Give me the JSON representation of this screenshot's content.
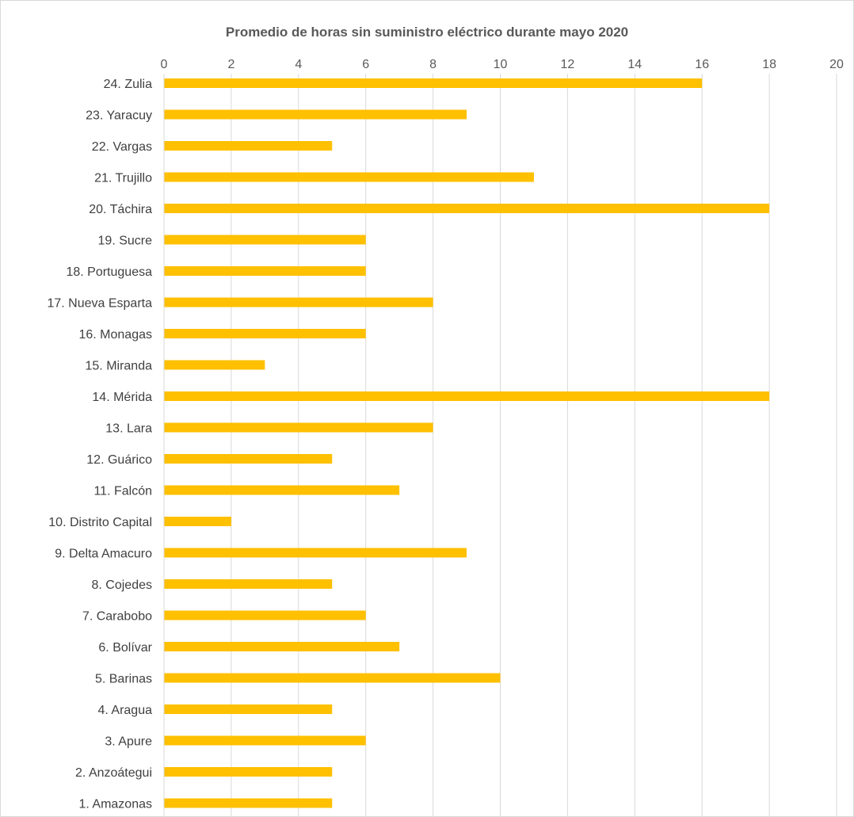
{
  "chart_data": {
    "type": "bar",
    "orientation": "horizontal",
    "title": "Promedio de horas sin suministro eléctrico durante mayo 2020",
    "xlabel": "",
    "ylabel": "",
    "xlim": [
      0,
      20
    ],
    "x_ticks": [
      0,
      2,
      4,
      6,
      8,
      10,
      12,
      14,
      16,
      18,
      20
    ],
    "x_axis_position": "top",
    "grid": true,
    "legend": "none",
    "bar_color": "#FFC000",
    "categories": [
      "24. Zulia",
      "23. Yaracuy",
      "22. Vargas",
      "21. Trujillo",
      "20. Táchira",
      "19. Sucre",
      "18. Portuguesa",
      "17. Nueva Esparta",
      "16. Monagas",
      "15. Miranda",
      "14. Mérida",
      "13. Lara",
      "12. Guárico",
      "11. Falcón",
      "10. Distrito Capital",
      "9. Delta Amacuro",
      "8. Cojedes",
      "7. Carabobo",
      "6. Bolívar",
      "5. Barinas",
      "4. Aragua",
      "3. Apure",
      "2. Anzoátegui",
      "1. Amazonas"
    ],
    "values": [
      16,
      9,
      5,
      11,
      18,
      6,
      6,
      8,
      6,
      3,
      18,
      8,
      5,
      7,
      2,
      9,
      5,
      6,
      7,
      10,
      5,
      6,
      5,
      5
    ]
  }
}
